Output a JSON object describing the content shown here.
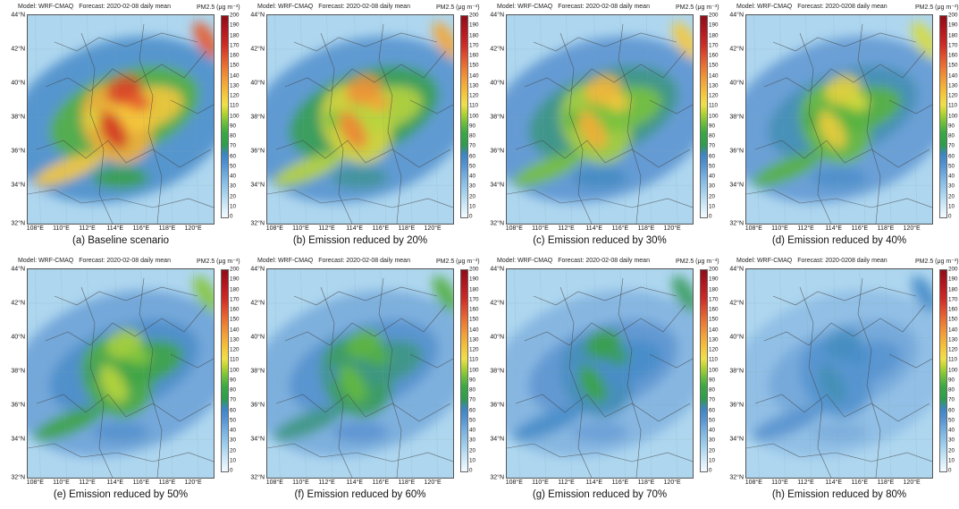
{
  "header": {
    "model": "Model: WRF-CMAQ",
    "unit": "PM2.5 (μg m⁻³)"
  },
  "lat_labels": [
    "44°N",
    "42°N",
    "40°N",
    "38°N",
    "36°N",
    "34°N",
    "32°N"
  ],
  "lon_labels": [
    "108°E",
    "110°E",
    "112°E",
    "114°E",
    "116°E",
    "118°E",
    "120°E"
  ],
  "colorbar": {
    "ticks": [
      "200",
      "190",
      "180",
      "170",
      "160",
      "150",
      "140",
      "130",
      "120",
      "110",
      "100",
      "90",
      "80",
      "70",
      "60",
      "50",
      "40",
      "30",
      "20",
      "10",
      "0"
    ],
    "colors": {
      "low": "#f4fbff",
      "mid": "#3aa844",
      "high": "#8f0d18"
    }
  },
  "panels": [
    {
      "forecast": "Forecast: 2020-02-08 daily mean",
      "caption": "(a) Baseline scenario",
      "reduction": 0
    },
    {
      "forecast": "Forecast: 2020-02-08 daily mean",
      "caption": "(b) Emission reduced by 20%",
      "reduction": 20
    },
    {
      "forecast": "Forecast: 2020-02-08 daily mean",
      "caption": "(c) Emission reduced by 30%",
      "reduction": 30
    },
    {
      "forecast": "Forecast: 2020-0208 daily mean",
      "caption": "(d) Emission reduced by 40%",
      "reduction": 40
    },
    {
      "forecast": "Forecast: 2020-02-08 daily mean",
      "caption": "(e) Emission reduced by 50%",
      "reduction": 50
    },
    {
      "forecast": "Forecast: 2020-02-08 daily mean",
      "caption": "(f) Emission reduced by 60%",
      "reduction": 60
    },
    {
      "forecast": "Forecast: 2020-02-08 daily mean",
      "caption": "(g) Emission reduced by 70%",
      "reduction": 70
    },
    {
      "forecast": "Forecast: 2020-0208 daily mean",
      "caption": "(h) Emission reduced by 80%",
      "reduction": 80
    }
  ]
}
